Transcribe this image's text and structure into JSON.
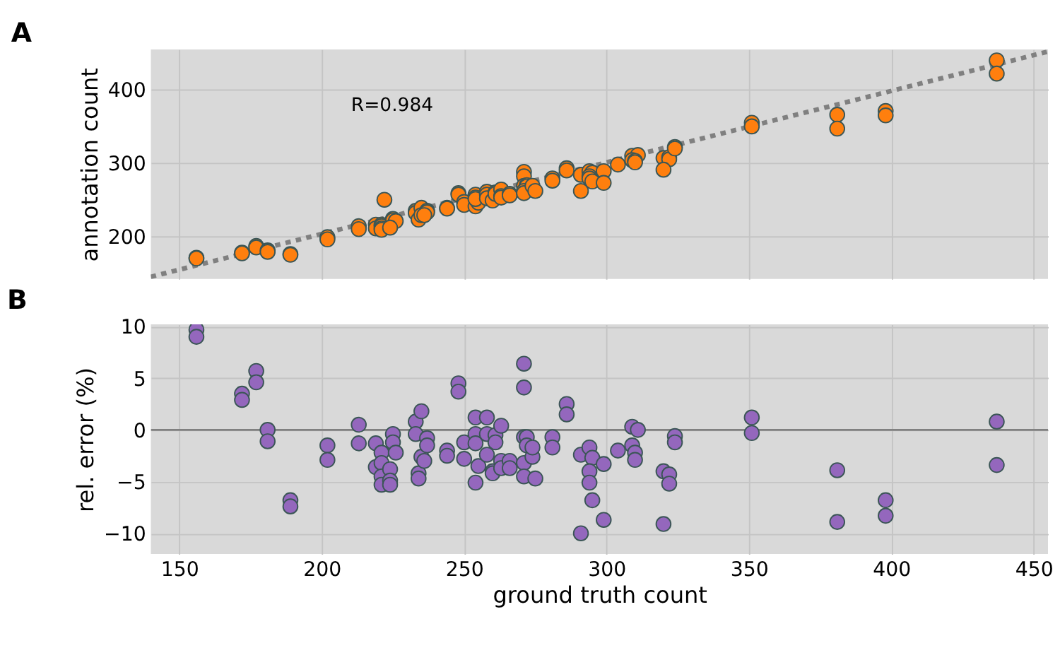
{
  "chart_data": [
    {
      "type": "scatter",
      "title": "A",
      "ylabel": "annotation count",
      "xlim": [
        140,
        455
      ],
      "ylim": [
        142,
        455
      ],
      "xticks": [
        150,
        200,
        250,
        300,
        350,
        400,
        450
      ],
      "yticks": [
        200,
        300,
        400
      ],
      "grid": true,
      "tick_labels": "y",
      "marker": "circle",
      "annotations": [
        "R=0.984"
      ],
      "series": [
        {
          "color": "#ff7f0e",
          "x": [
            156,
            156,
            172,
            172,
            177,
            177,
            181,
            181,
            189,
            189,
            202,
            202,
            213,
            213,
            219,
            219,
            221,
            221,
            221,
            221,
            225,
            225,
            226,
            224,
            233,
            233,
            235,
            234,
            235,
            237,
            237,
            236,
            244,
            244,
            248,
            248,
            250,
            250,
            254,
            254,
            254,
            255,
            254,
            258,
            258,
            258,
            260,
            261,
            261,
            263,
            263,
            263,
            266,
            266,
            271,
            271,
            271,
            272,
            272,
            271,
            271,
            274,
            275,
            281,
            281,
            286,
            286,
            291,
            291,
            294,
            295,
            294,
            294,
            295,
            299,
            299,
            304,
            309,
            311,
            309,
            310,
            310,
            320,
            322,
            322,
            320,
            324,
            324,
            351,
            351,
            381,
            381,
            398,
            398,
            437,
            437,
            222
          ],
          "values": [
            171,
            170,
            178,
            177,
            187,
            185,
            181,
            179,
            176,
            175,
            199,
            196,
            214,
            210,
            216,
            211,
            216,
            214,
            211,
            209,
            224,
            222,
            221,
            212,
            235,
            232,
            239,
            223,
            229,
            235,
            233,
            229,
            239,
            238,
            259,
            257,
            247,
            243,
            257,
            253,
            241,
            246,
            251,
            261,
            257,
            252,
            249,
            260,
            258,
            264,
            255,
            253,
            258,
            256,
            288,
            282,
            269,
            270,
            268,
            262,
            259,
            269,
            262,
            279,
            276,
            293,
            290,
            284,
            262,
            289,
            287,
            282,
            279,
            275,
            289,
            273,
            298,
            310,
            311,
            304,
            303,
            301,
            307,
            308,
            305,
            291,
            322,
            320,
            355,
            350,
            366,
            347,
            371,
            365,
            440,
            422,
            250
          ]
        },
        {
          "type": "line",
          "color": "#808080",
          "line_style": "dotted",
          "marker": "none",
          "x": [
            140,
            455
          ],
          "values": [
            145,
            452
          ]
        }
      ]
    },
    {
      "type": "scatter",
      "title": "B",
      "xlabel": "ground truth count",
      "ylabel": "rel. error (%)",
      "xlim": [
        140,
        455
      ],
      "ylim": [
        -12,
        10.2
      ],
      "xticks": [
        150,
        200,
        250,
        300,
        350,
        400,
        450
      ],
      "yticks": [
        -10,
        -5,
        0,
        5,
        10
      ],
      "grid": true,
      "marker": "circle",
      "ref_lines": [
        {
          "axis": "y",
          "value": 0,
          "color": "#808080"
        }
      ],
      "series": [
        {
          "color": "#9467bd",
          "x": [
            156,
            156,
            172,
            172,
            177,
            177,
            181,
            181,
            189,
            189,
            202,
            202,
            213,
            213,
            219,
            219,
            221,
            221,
            221,
            221,
            224,
            224,
            225,
            225,
            226,
            224,
            233,
            233,
            235,
            234,
            234,
            235,
            237,
            237,
            236,
            244,
            244,
            248,
            248,
            250,
            250,
            254,
            254,
            254,
            255,
            254,
            258,
            258,
            258,
            260,
            260,
            261,
            261,
            263,
            263,
            263,
            266,
            266,
            271,
            271,
            271,
            272,
            272,
            271,
            271,
            274,
            274,
            275,
            281,
            281,
            286,
            286,
            291,
            291,
            294,
            295,
            294,
            294,
            295,
            299,
            299,
            304,
            309,
            311,
            309,
            310,
            310,
            320,
            322,
            322,
            320,
            324,
            324,
            351,
            351,
            381,
            381,
            398,
            398,
            437,
            437
          ],
          "values": [
            9.7,
            9.0,
            3.5,
            2.9,
            5.7,
            4.6,
            0,
            -1.1,
            -6.8,
            -7.4,
            -1.5,
            -2.9,
            0.5,
            -1.3,
            -1.3,
            -3.6,
            -2.2,
            -3.2,
            -4.5,
            -5.3,
            -3.8,
            -4.9,
            -0.4,
            -1.2,
            -2.2,
            -5.3,
            0.8,
            -0.4,
            1.8,
            -4.2,
            -4.7,
            -2.6,
            -0.8,
            -1.5,
            -3.0,
            -2.0,
            -2.5,
            4.5,
            3.7,
            -1.2,
            -2.8,
            1.2,
            -0.4,
            -5.1,
            -3.5,
            -1.3,
            1.2,
            -0.4,
            -2.4,
            -4.0,
            -4.2,
            -0.5,
            -1.2,
            0.4,
            -3.0,
            -3.7,
            -3.0,
            -3.7,
            6.4,
            4.1,
            -0.7,
            -0.7,
            -1.5,
            -3.2,
            -4.5,
            -2.6,
            -1.7,
            -4.7,
            -0.7,
            -1.7,
            2.5,
            1.5,
            -2.4,
            -10,
            -1.7,
            -2.7,
            -4.0,
            -5.1,
            -6.8,
            -3.3,
            -8.7,
            -2.0,
            0.3,
            0,
            -1.5,
            -2.2,
            -2.9,
            -4.0,
            -4.3,
            -5.2,
            -9.1,
            -0.6,
            -1.2,
            1.2,
            -0.3,
            -3.9,
            -8.9,
            -6.8,
            -8.3,
            0.8,
            -3.4
          ]
        }
      ]
    }
  ]
}
